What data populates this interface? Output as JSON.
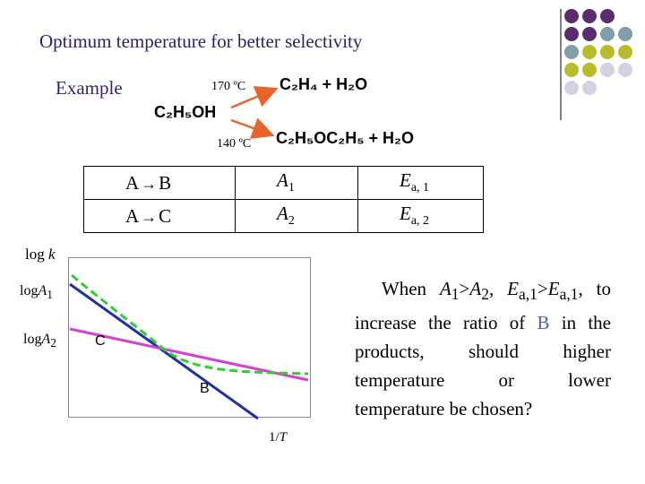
{
  "slide": {
    "title": "Optimum temperature for better selectivity",
    "example_label": "Example",
    "reaction": {
      "reactant": "C₂H₅OH",
      "high_temp": "170 ºC",
      "high_product": "C₂H₄ + H₂O",
      "low_temp": "140 ºC",
      "low_product": "C₂H₅OC₂H₅ + H₂O",
      "arrow_color": "#e8642a"
    }
  },
  "table": {
    "rows": [
      {
        "reaction": "A",
        "product": "B",
        "prefactor": "A",
        "prefactor_sub": "1",
        "energy": "E",
        "energy_sub": "a, 1"
      },
      {
        "reaction": "A",
        "product": "C",
        "prefactor": "A",
        "prefactor_sub": "2",
        "energy": "E",
        "energy_sub": "a, 2"
      }
    ]
  },
  "graph": {
    "y_axis_label": "log k",
    "y_tick_1": "logA1",
    "y_tick_2": "logA2",
    "x_axis_label": "1/T",
    "line_b_label": "B",
    "line_c_label": "C",
    "colors": {
      "line_b": "#1f2f9f",
      "line_c": "#d43fd4",
      "combined": "#2ecf2e"
    }
  },
  "question": {
    "line1": "When A1>A2, Ea,1>Ea,1, to",
    "line2_prefix": "increase the ratio of ",
    "highlight": "B",
    "line2_suffix": " in the",
    "line3": "products, should higher",
    "line4": "temperature or lower",
    "line5": "temperature be chosen?",
    "highlight_color": "#4a64b4"
  },
  "decor": {
    "colors": [
      "#5b2d6e",
      "#7f9ea6",
      "#b8bd2b",
      "#d4d2e0"
    ]
  }
}
